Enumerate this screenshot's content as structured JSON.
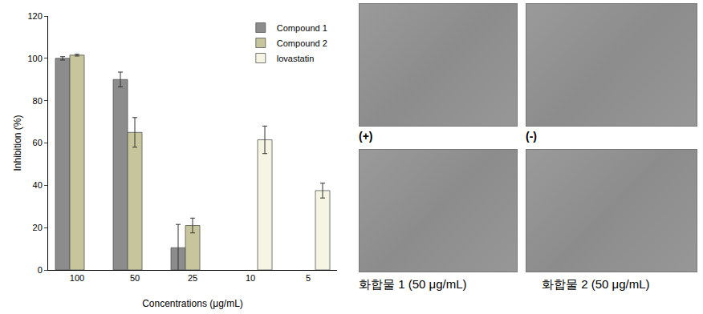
{
  "chart_data": {
    "type": "bar",
    "x_label": "Concentrations (μg/mL)",
    "y_label": "Inhibition (%)",
    "categories": [
      "100",
      "50",
      "25",
      "10",
      "5"
    ],
    "series": [
      {
        "name": "Compound 1",
        "color": "#8c8c8c",
        "values": [
          100,
          90,
          10.5,
          null,
          null
        ],
        "errors": [
          0.8,
          3.5,
          11,
          null,
          null
        ]
      },
      {
        "name": "Compound 2",
        "color": "#c6c59b",
        "values": [
          101.5,
          65,
          21,
          null,
          null
        ],
        "errors": [
          0.4,
          7,
          3.5,
          null,
          null
        ]
      },
      {
        "name": "lovastatin",
        "color": "#f6f4e2",
        "values": [
          null,
          null,
          null,
          61.5,
          37.5
        ],
        "errors": [
          null,
          null,
          null,
          6.5,
          3.5
        ]
      }
    ],
    "ylim": [
      0,
      120
    ],
    "yticks": [
      0,
      20,
      40,
      60,
      80,
      100,
      120
    ],
    "grid": false,
    "legend": "top-right"
  },
  "images": [
    {
      "caption": "(+)"
    },
    {
      "caption": "(-)"
    },
    {
      "caption": "화합물 1 (50 μg/mL)"
    },
    {
      "caption": "화합물 2 (50 μg/mL)"
    }
  ]
}
